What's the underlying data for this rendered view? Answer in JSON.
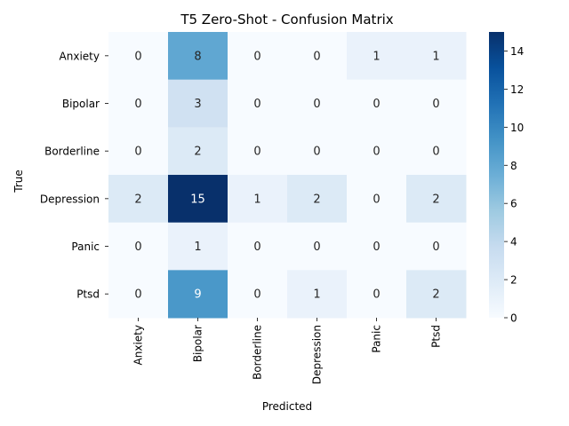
{
  "chart_data": {
    "type": "heatmap",
    "title": "T5 Zero-Shot - Confusion Matrix",
    "xlabel": "Predicted",
    "ylabel": "True",
    "x_categories": [
      "Anxiety",
      "Bipolar",
      "Borderline",
      "Depression",
      "Panic",
      "Ptsd"
    ],
    "y_categories": [
      "Anxiety",
      "Bipolar",
      "Borderline",
      "Depression",
      "Panic",
      "Ptsd"
    ],
    "values": [
      [
        0,
        8,
        0,
        0,
        1,
        1
      ],
      [
        0,
        3,
        0,
        0,
        0,
        0
      ],
      [
        0,
        2,
        0,
        0,
        0,
        0
      ],
      [
        2,
        15,
        1,
        2,
        0,
        2
      ],
      [
        0,
        1,
        0,
        0,
        0,
        0
      ],
      [
        0,
        9,
        0,
        1,
        0,
        2
      ]
    ],
    "colormap": "Blues",
    "vmin": 0,
    "vmax": 15,
    "colorbar_ticks": [
      0,
      2,
      4,
      6,
      8,
      10,
      12,
      14
    ],
    "annotations": true
  }
}
